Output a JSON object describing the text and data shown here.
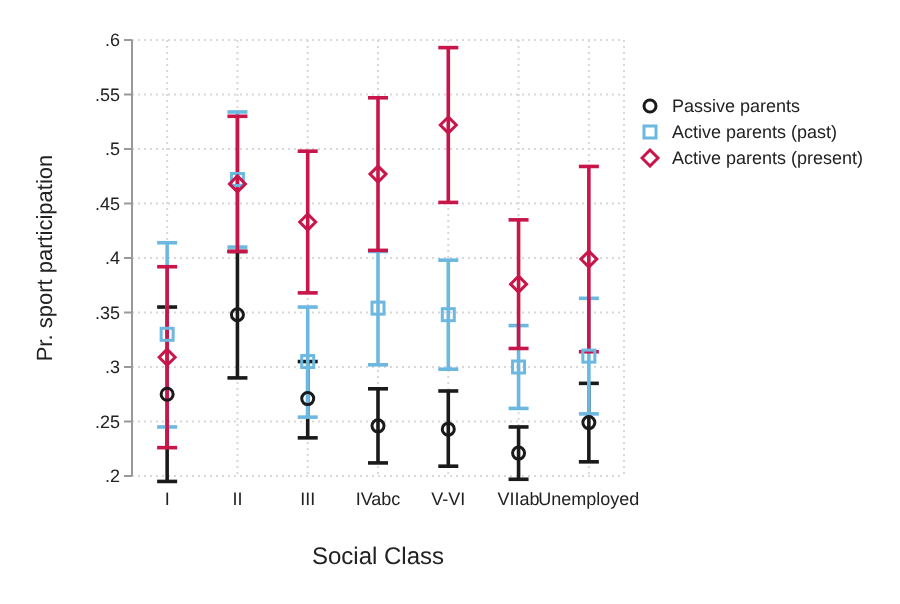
{
  "chart_data": {
    "type": "scatter",
    "xlabel": "Social Class",
    "ylabel": "Pr. sport participation",
    "categories": [
      "I",
      "II",
      "III",
      "IVabc",
      "V-VI",
      "VIIab",
      "Unemployed"
    ],
    "series": [
      {
        "name": "Passive parents",
        "color": "#1a1a1a",
        "marker": "circle",
        "values": [
          0.275,
          0.348,
          0.271,
          0.246,
          0.243,
          0.221,
          0.249
        ],
        "errors": [
          [
            0.195,
            0.355
          ],
          [
            0.29,
            0.406
          ],
          [
            0.235,
            0.305
          ],
          [
            0.212,
            0.28
          ],
          [
            0.209,
            0.278
          ],
          [
            0.197,
            0.245
          ],
          [
            0.213,
            0.285
          ]
        ]
      },
      {
        "name": "Active parents (past)",
        "color": "#6cb8e0",
        "marker": "square",
        "values": [
          0.33,
          0.472,
          0.305,
          0.354,
          0.348,
          0.3,
          0.31
        ],
        "errors": [
          [
            0.245,
            0.414
          ],
          [
            0.41,
            0.534
          ],
          [
            0.254,
            0.355
          ],
          [
            0.302,
            0.406
          ],
          [
            0.298,
            0.398
          ],
          [
            0.262,
            0.338
          ],
          [
            0.257,
            0.363
          ]
        ]
      },
      {
        "name": "Active parents (present)",
        "color": "#c8154a",
        "marker": "diamond",
        "values": [
          0.309,
          0.468,
          0.433,
          0.477,
          0.522,
          0.376,
          0.399
        ],
        "errors": [
          [
            0.226,
            0.392
          ],
          [
            0.406,
            0.53
          ],
          [
            0.368,
            0.498
          ],
          [
            0.407,
            0.547
          ],
          [
            0.451,
            0.593
          ],
          [
            0.317,
            0.435
          ],
          [
            0.314,
            0.484
          ]
        ]
      }
    ],
    "ylim": [
      0.2,
      0.6
    ],
    "yticks": [
      {
        "value": 0.2,
        "label": ".2"
      },
      {
        "value": 0.25,
        "label": ".25"
      },
      {
        "value": 0.3,
        "label": ".3"
      },
      {
        "value": 0.35,
        "label": ".35"
      },
      {
        "value": 0.4,
        "label": ".4"
      },
      {
        "value": 0.45,
        "label": ".45"
      },
      {
        "value": 0.5,
        "label": ".5"
      },
      {
        "value": 0.55,
        "label": ".55"
      },
      {
        "value": 0.6,
        "label": ".6"
      }
    ],
    "grid": true,
    "legend": "right"
  }
}
